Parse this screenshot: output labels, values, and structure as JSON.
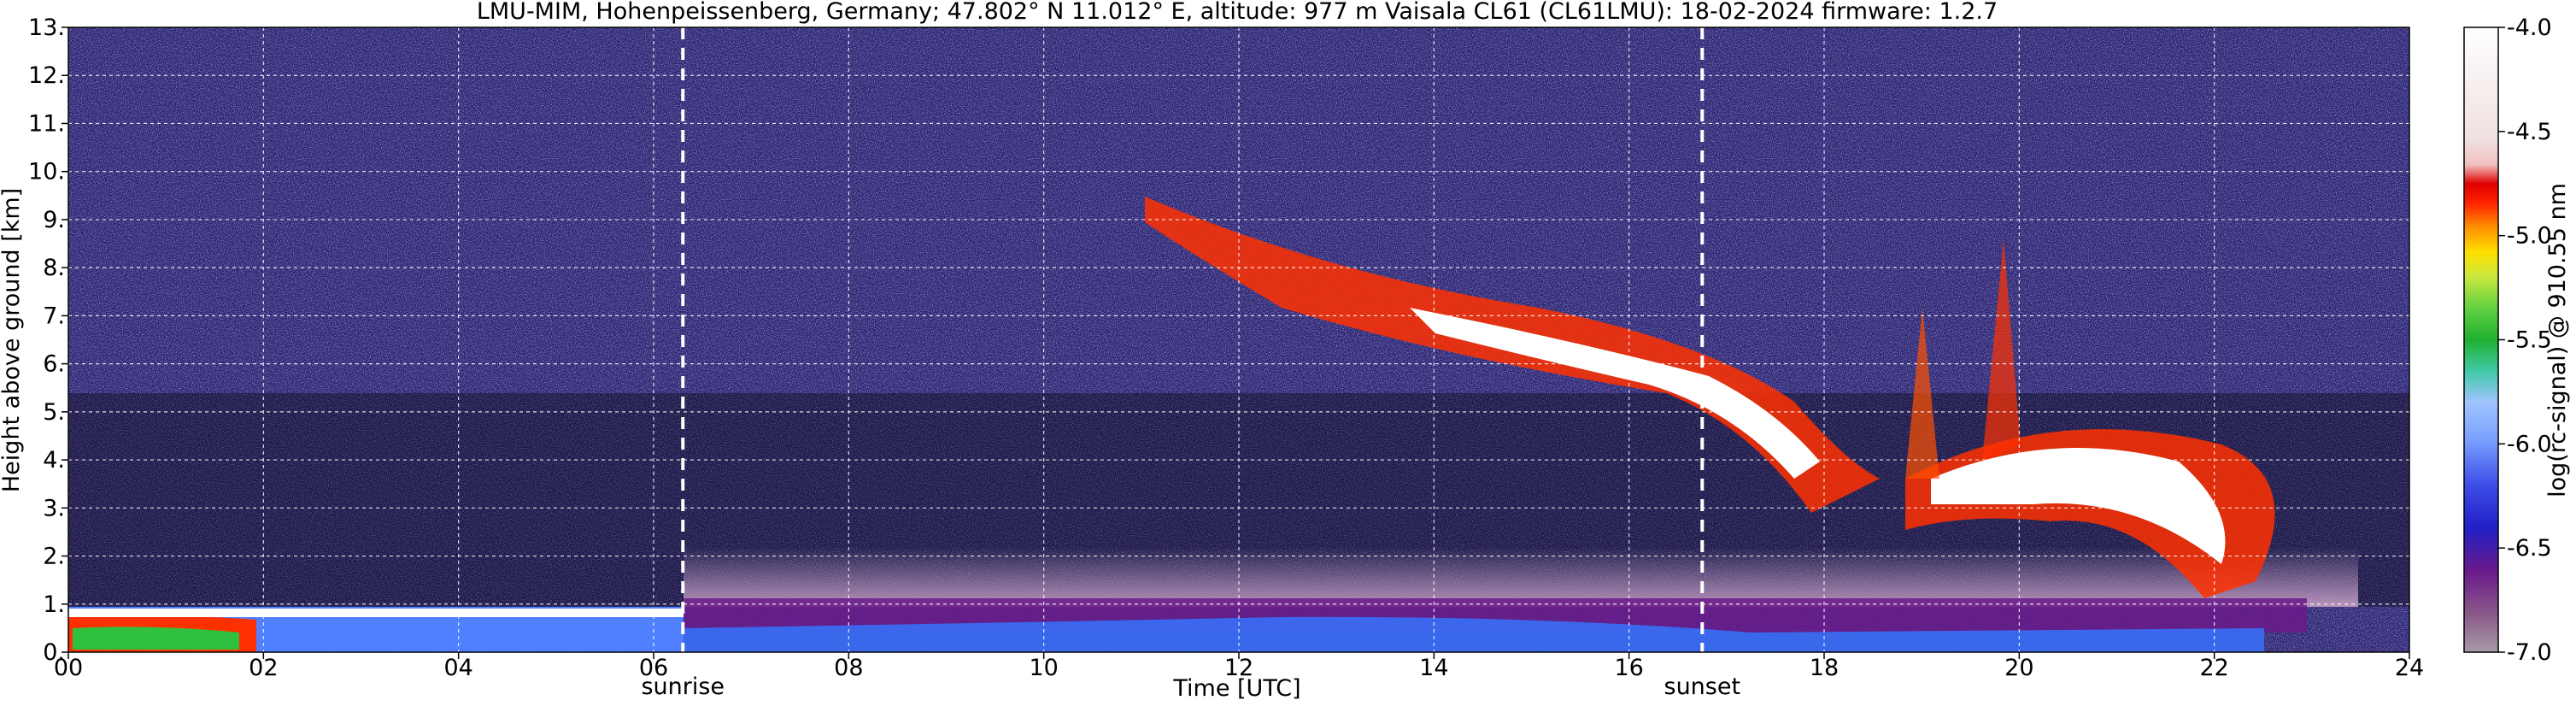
{
  "chart_data": {
    "type": "heatmap",
    "title": "LMU-MIM, Hohenpeissenberg, Germany; 47.802° N 11.012° E, altitude: 977 m    Vaisala CL61 (CL61LMU): 18-02-2024    firmware: 1.2.7",
    "xlabel": "Time [UTC]",
    "ylabel": "Height above ground [km]",
    "xlim": [
      0,
      24
    ],
    "ylim": [
      0,
      13
    ],
    "x_ticks": [
      "00",
      "02",
      "04",
      "06",
      "08",
      "10",
      "12",
      "14",
      "16",
      "18",
      "20",
      "22",
      "24"
    ],
    "y_ticks": [
      "0.",
      "1.",
      "2.",
      "3.",
      "4.",
      "5.",
      "6.",
      "7.",
      "8.",
      "9.",
      "10.",
      "11.",
      "12.",
      "13."
    ],
    "grid": true,
    "colorbar": {
      "label": "log(rc-signal) @ 910.55 nm",
      "range": [
        -7.0,
        -4.0
      ],
      "ticks": [
        "-4.0",
        "-4.5",
        "-5.0",
        "-5.5",
        "-6.0",
        "-6.5",
        "-7.0"
      ]
    },
    "annotations": [
      {
        "label": "sunrise",
        "x": 6.3
      },
      {
        "label": "sunset",
        "x": 16.75
      }
    ]
  }
}
